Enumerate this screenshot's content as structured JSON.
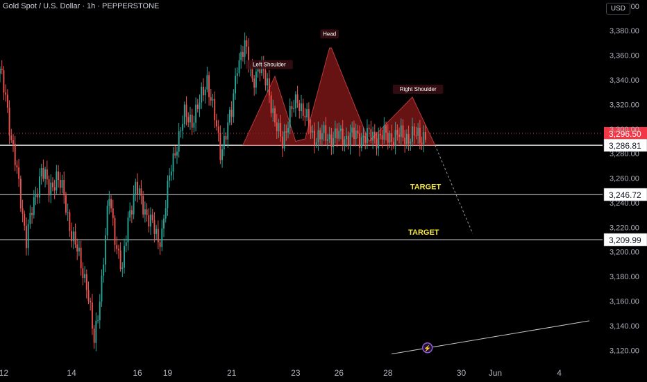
{
  "header": {
    "symbol_title": "Gold Spot / U.S. Dollar · 1h · PEPPERSTONE",
    "currency": "USD"
  },
  "colors": {
    "background": "#000000",
    "up": "#26a69a",
    "down": "#ef5350",
    "pattern_fill": "#8b1a1a",
    "target_text": "#f5e642",
    "price_badge": "#f23645"
  },
  "chart_data": {
    "type": "candlestick",
    "ylim": [
      3110,
      3405
    ],
    "y_ticks": [
      "3,400.00",
      "3,380.00",
      "3,360.00",
      "3,340.00",
      "3,320.00",
      "3,300.00",
      "3,280.00",
      "3,260.00",
      "3,240.00",
      "3,220.00",
      "3,200.00",
      "3,180.00",
      "3,160.00",
      "3,140.00",
      "3,120.00"
    ],
    "y_tick_values": [
      3400,
      3380,
      3360,
      3340,
      3320,
      3300,
      3280,
      3260,
      3240,
      3220,
      3200,
      3180,
      3160,
      3140,
      3120
    ],
    "x_ticks": [
      "12",
      "14",
      "16",
      "19",
      "21",
      "23",
      "26",
      "28",
      "30",
      "Jun",
      "4"
    ],
    "x_tick_values": [
      2,
      38,
      73,
      89,
      123,
      157,
      180,
      206,
      245,
      263,
      297
    ],
    "price_series": {
      "bar_index": [
        0,
        3,
        6,
        10,
        14,
        18,
        22,
        26,
        30,
        34,
        38,
        42,
        46,
        50,
        54,
        58,
        62,
        65,
        68,
        72,
        76,
        80,
        84,
        86,
        88,
        91,
        94,
        98,
        102,
        106,
        110,
        114,
        117,
        120,
        123,
        126,
        130,
        134,
        138,
        142,
        146,
        150,
        154,
        158,
        162,
        166,
        170,
        174,
        178,
        182,
        186,
        190,
        194,
        198,
        202,
        205,
        208,
        212,
        216,
        220,
        224,
        226
      ],
      "close": [
        3345,
        3330,
        3290,
        3255,
        3210,
        3240,
        3268,
        3250,
        3262,
        3245,
        3215,
        3195,
        3175,
        3125,
        3178,
        3245,
        3205,
        3182,
        3228,
        3252,
        3238,
        3225,
        3208,
        3218,
        3240,
        3268,
        3290,
        3310,
        3308,
        3320,
        3342,
        3308,
        3282,
        3298,
        3312,
        3355,
        3366,
        3342,
        3348,
        3340,
        3302,
        3292,
        3310,
        3326,
        3310,
        3295,
        3294,
        3294,
        3294,
        3294,
        3294,
        3294,
        3294,
        3294,
        3294,
        3294,
        3294,
        3294,
        3294,
        3294,
        3294,
        3296.5
      ]
    },
    "price_levels": [
      {
        "label": "3,296.50",
        "value": 3296.5,
        "style": "current"
      },
      {
        "label": "3,286.81",
        "value": 3286.81,
        "style": "neckline"
      },
      {
        "label": "3,246.72",
        "value": 3246.72,
        "style": "target"
      },
      {
        "label": "3,209.99",
        "value": 3209.99,
        "style": "target"
      }
    ],
    "annotations": [
      {
        "text": "Left Shoulder",
        "x": 143,
        "y": 3351
      },
      {
        "text": "Head",
        "x": 175,
        "y": 3376
      },
      {
        "text": "Right Shoulder",
        "x": 222,
        "y": 3331
      },
      {
        "text": "TARGET",
        "x": 226,
        "y": 3251
      },
      {
        "text": "TARGET",
        "x": 225,
        "y": 3214
      }
    ],
    "pattern": {
      "name": "head and shoulders",
      "x": [
        129,
        146,
        157,
        162,
        175,
        176,
        196,
        219,
        231
      ],
      "y": [
        3287,
        3343,
        3290,
        3292,
        3366,
        3366,
        3290,
        3326,
        3287
      ]
    },
    "projection_line": {
      "x": [
        231,
        251
      ],
      "y": [
        3287,
        3215
      ]
    },
    "trend_line": {
      "x": [
        208,
        313
      ],
      "y": [
        3117,
        3144
      ]
    },
    "grid": false,
    "legend": "none"
  }
}
